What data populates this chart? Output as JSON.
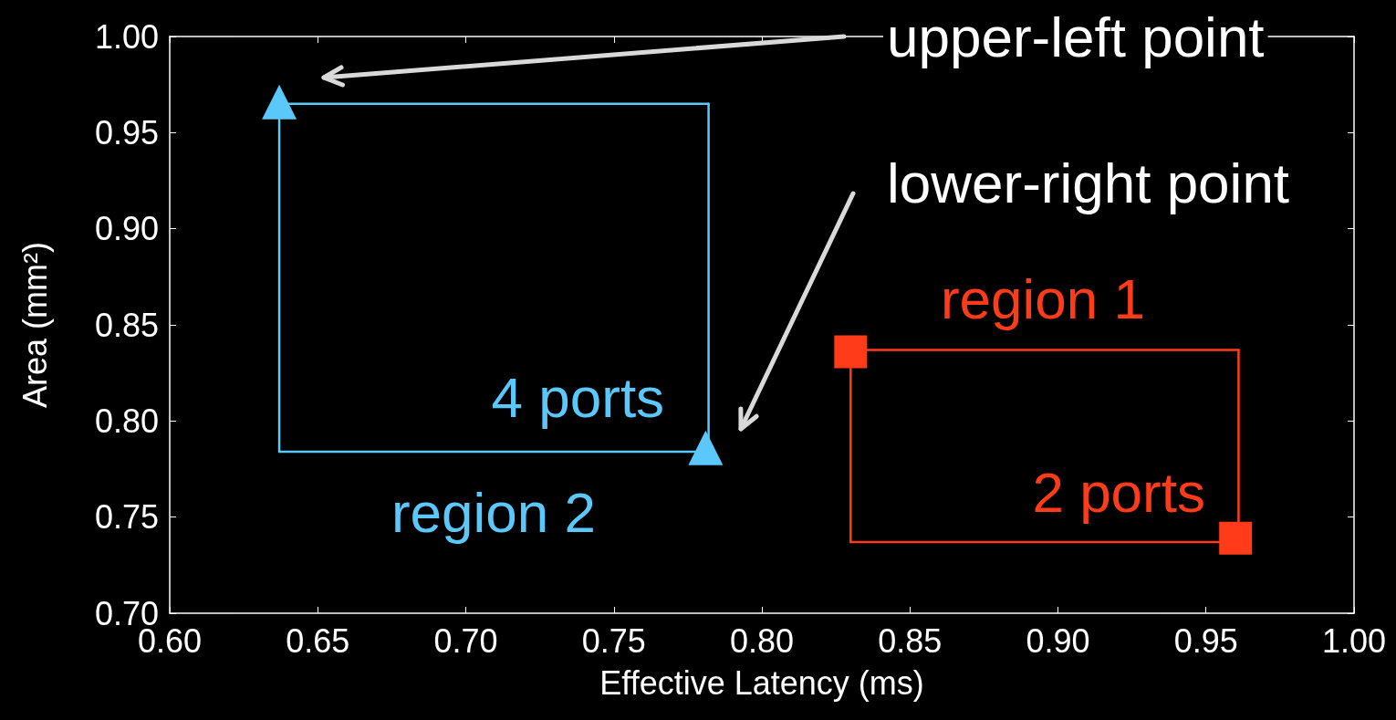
{
  "chart_data": {
    "type": "scatter",
    "xlabel": "Effective Latency (ms)",
    "ylabel": "Area (mm²)",
    "xlim": [
      0.6,
      1.0
    ],
    "xticks": [
      {
        "value": 0.6,
        "label": "0.60"
      },
      {
        "value": 0.65,
        "label": "0.65"
      },
      {
        "value": 0.7,
        "label": "0.70"
      },
      {
        "value": 0.75,
        "label": "0.75"
      },
      {
        "value": 0.8,
        "label": "0.80"
      },
      {
        "value": 0.85,
        "label": "0.85"
      },
      {
        "value": 0.9,
        "label": "0.90"
      },
      {
        "value": 0.95,
        "label": "0.95"
      },
      {
        "value": 1.0,
        "label": "1.00"
      }
    ],
    "ylim": [
      0.7,
      1.0
    ],
    "yticks": [
      {
        "value": 0.7,
        "label": "0.70"
      },
      {
        "value": 0.75,
        "label": "0.75"
      },
      {
        "value": 0.8,
        "label": "0.80"
      },
      {
        "value": 0.85,
        "label": "0.85"
      },
      {
        "value": 0.9,
        "label": "0.90"
      },
      {
        "value": 0.95,
        "label": "0.95"
      },
      {
        "value": 1.0,
        "label": "1.00"
      }
    ],
    "grid": false,
    "legend": false,
    "series": [
      {
        "name": "4 ports",
        "marker": "triangle",
        "color": "#5ac8fa",
        "x": [
          0.637,
          0.781
        ],
        "values": [
          0.966,
          0.786
        ]
      },
      {
        "type": "line",
        "marker": "none",
        "line_style": "solid",
        "color": "#5ac8fa",
        "x": [
          0.782,
          0.637,
          0.637
        ],
        "values": [
          0.965,
          0.965,
          0.784
        ]
      },
      {
        "type": "line",
        "marker": "none",
        "line_style": "solid",
        "color": "#5ac8fa",
        "x": [
          0.637,
          0.782,
          0.782
        ],
        "values": [
          0.784,
          0.784,
          0.965
        ]
      },
      {
        "name": "2 ports",
        "marker": "square",
        "color": "#ff3b1a",
        "x": [
          0.83,
          0.96
        ],
        "values": [
          0.836,
          0.739
        ]
      },
      {
        "type": "line",
        "marker": "none",
        "line_style": "solid",
        "color": "#ff3b1a",
        "x": [
          0.961,
          0.83,
          0.83
        ],
        "values": [
          0.837,
          0.837,
          0.737
        ]
      },
      {
        "type": "line",
        "marker": "none",
        "line_style": "solid",
        "color": "#ff3b1a",
        "x": [
          0.83,
          0.961,
          0.961
        ],
        "values": [
          0.737,
          0.737,
          0.837
        ]
      }
    ],
    "annotations": [
      "upper-left point",
      "lower-right point",
      "region 1",
      "region 2"
    ]
  }
}
